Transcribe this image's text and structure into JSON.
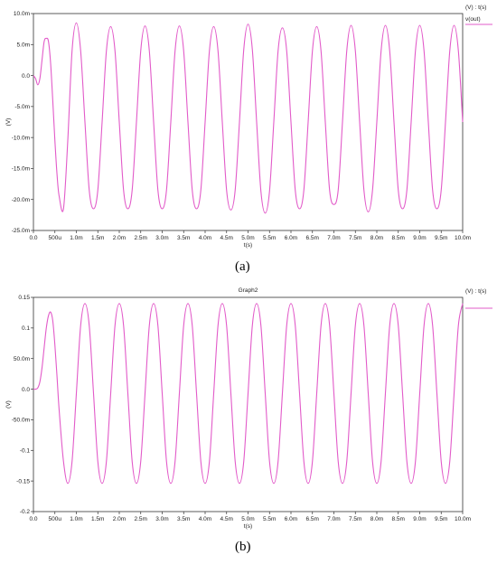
{
  "captions": [
    "(a)",
    "(b)"
  ],
  "chart_data": [
    {
      "type": "line",
      "title": "",
      "xlabel": "t(s)",
      "ylabel": "(V)",
      "legend_header": "(V) : t(s)",
      "legend_position": "top-right",
      "grid": false,
      "xlim": [
        0,
        0.01
      ],
      "ylim": [
        -0.025,
        0.01
      ],
      "x_ticks": [
        0,
        0.0005,
        0.001,
        0.0015,
        0.002,
        0.0025,
        0.003,
        0.0035,
        0.004,
        0.0045,
        0.005,
        0.0055,
        0.006,
        0.0065,
        0.007,
        0.0075,
        0.008,
        0.0085,
        0.009,
        0.0095,
        0.01
      ],
      "x_tick_labels": [
        "0.0",
        "500u",
        "1.0m",
        "1.5m",
        "2.0m",
        "2.5m",
        "3.0m",
        "3.5m",
        "4.0m",
        "4.5m",
        "5.0m",
        "5.5m",
        "6.0m",
        "6.5m",
        "7.0m",
        "7.5m",
        "8.0m",
        "8.5m",
        "9.0m",
        "9.5m",
        "10.0m"
      ],
      "y_ticks": [
        0.01,
        0.005,
        0,
        -0.005,
        -0.01,
        -0.015,
        -0.02,
        -0.025
      ],
      "y_tick_labels": [
        "10.0m",
        "5.0m",
        "0.0",
        "-5.0m",
        "-10.0m",
        "-15.0m",
        "-20.0m",
        "-25.0m"
      ],
      "series": [
        {
          "name": "v(out)",
          "color": "#e25bc9",
          "x": [
            0,
            5e-05,
            0.0001,
            0.00015,
            0.0002,
            0.00025,
            0.0003,
            0.00035,
            0.0004,
            0.00045,
            0.0005,
            0.00055,
            0.0006,
            0.0007,
            0.0008,
            0.0009,
            0.001,
            0.0011,
            0.0012,
            0.0013,
            0.0014,
            0.0015,
            0.0016,
            0.0017,
            0.0018,
            0.0019,
            0.002,
            0.0021,
            0.0022,
            0.0023,
            0.0024,
            0.0025,
            0.0026,
            0.0027,
            0.0028,
            0.0029,
            0.003,
            0.0031,
            0.0032,
            0.0033,
            0.0034,
            0.0035,
            0.0036,
            0.0037,
            0.0038,
            0.0039,
            0.004,
            0.0041,
            0.0042,
            0.0043,
            0.0044,
            0.0045,
            0.0046,
            0.0047,
            0.0048,
            0.0049,
            0.005,
            0.0051,
            0.0052,
            0.0053,
            0.0054,
            0.0055,
            0.0056,
            0.0057,
            0.0058,
            0.0059,
            0.006,
            0.0061,
            0.0062,
            0.0063,
            0.0064,
            0.0065,
            0.0066,
            0.0067,
            0.0068,
            0.0069,
            0.007,
            0.0071,
            0.0072,
            0.0073,
            0.0074,
            0.0075,
            0.0076,
            0.0077,
            0.0078,
            0.0079,
            0.008,
            0.0081,
            0.0082,
            0.0083,
            0.0084,
            0.0085,
            0.0086,
            0.0087,
            0.0088,
            0.0089,
            0.009,
            0.0091,
            0.0092,
            0.0093,
            0.0094,
            0.0095,
            0.0096,
            0.0097,
            0.0098,
            0.0099,
            0.01
          ],
          "y": [
            0,
            -0.0005,
            -0.0015,
            -0.0005,
            0.0025,
            0.0055,
            0.006,
            0.0055,
            0.002,
            -0.004,
            -0.0105,
            -0.016,
            -0.0195,
            -0.0215,
            -0.0105,
            0.004,
            0.0085,
            0.004,
            -0.0075,
            -0.0185,
            -0.0215,
            -0.0185,
            -0.0075,
            0.004,
            0.0079,
            0.004,
            -0.0075,
            -0.0185,
            -0.0215,
            -0.0185,
            -0.0075,
            0.004,
            0.008,
            0.004,
            -0.0075,
            -0.0185,
            -0.0215,
            -0.0185,
            -0.0075,
            0.004,
            0.008,
            0.004,
            -0.0075,
            -0.0185,
            -0.0215,
            -0.0185,
            -0.0075,
            0.004,
            0.0079,
            0.004,
            -0.0075,
            -0.0185,
            -0.0217,
            -0.0185,
            -0.0075,
            0.0042,
            0.0083,
            0.0042,
            -0.0075,
            -0.0187,
            -0.0222,
            -0.0187,
            -0.0075,
            0.004,
            0.0077,
            0.004,
            -0.0075,
            -0.0185,
            -0.0215,
            -0.0185,
            -0.0075,
            0.004,
            0.0079,
            0.004,
            -0.0075,
            -0.0185,
            -0.0208,
            -0.0185,
            -0.0075,
            0.004,
            0.0081,
            0.004,
            -0.0075,
            -0.0185,
            -0.022,
            -0.0185,
            -0.0075,
            0.004,
            0.0081,
            0.004,
            -0.0075,
            -0.0185,
            -0.0215,
            -0.0185,
            -0.0075,
            0.004,
            0.0081,
            0.004,
            -0.0075,
            -0.0185,
            -0.0215,
            -0.0185,
            -0.0075,
            0.004,
            0.0081,
            0.004,
            -0.0075
          ]
        }
      ]
    },
    {
      "type": "line",
      "title": "Graph2",
      "xlabel": "t(s)",
      "ylabel": "(V)",
      "legend_header": "(V) : t(s)",
      "legend_position": "top-right",
      "grid": false,
      "xlim": [
        0,
        0.01
      ],
      "ylim": [
        -0.2,
        0.15
      ],
      "x_ticks": [
        0,
        0.0005,
        0.001,
        0.0015,
        0.002,
        0.0025,
        0.003,
        0.0035,
        0.004,
        0.0045,
        0.005,
        0.0055,
        0.006,
        0.0065,
        0.007,
        0.0075,
        0.008,
        0.0085,
        0.009,
        0.0095,
        0.01
      ],
      "x_tick_labels": [
        "0.0",
        "500u",
        "1.0m",
        "1.5m",
        "2.0m",
        "2.5m",
        "3.0m",
        "3.5m",
        "4.0m",
        "4.5m",
        "5.0m",
        "5.5m",
        "6.0m",
        "6.5m",
        "7.0m",
        "7.5m",
        "8.0m",
        "8.5m",
        "9.0m",
        "9.5m",
        "10.0m"
      ],
      "y_ticks": [
        0.15,
        0.1,
        0.05,
        0,
        -0.05,
        -0.1,
        -0.15,
        -0.2
      ],
      "y_tick_labels": [
        "0.15",
        "0.1",
        "50.0m",
        "0.0",
        "-50.0m",
        "-0.1",
        "-0.15",
        "-0.2"
      ],
      "series": [
        {
          "name": "",
          "color": "#e25bc9",
          "x": [
            0,
            5e-05,
            0.0001,
            0.00015,
            0.0002,
            0.00025,
            0.0003,
            0.00035,
            0.0004,
            0.00045,
            0.0005,
            0.00055,
            0.0006,
            0.0007,
            0.0008,
            0.0009,
            0.001,
            0.0011,
            0.0012,
            0.0013,
            0.0014,
            0.0015,
            0.0016,
            0.0017,
            0.0018,
            0.0019,
            0.002,
            0.0021,
            0.0022,
            0.0023,
            0.0024,
            0.0025,
            0.0026,
            0.0027,
            0.0028,
            0.0029,
            0.003,
            0.0031,
            0.0032,
            0.0033,
            0.0034,
            0.0035,
            0.0036,
            0.0037,
            0.0038,
            0.0039,
            0.004,
            0.0041,
            0.0042,
            0.0043,
            0.0044,
            0.0045,
            0.0046,
            0.0047,
            0.0048,
            0.0049,
            0.005,
            0.0051,
            0.0052,
            0.0053,
            0.0054,
            0.0055,
            0.0056,
            0.0057,
            0.0058,
            0.0059,
            0.006,
            0.0061,
            0.0062,
            0.0063,
            0.0064,
            0.0065,
            0.0066,
            0.0067,
            0.0068,
            0.0069,
            0.007,
            0.0071,
            0.0072,
            0.0073,
            0.0074,
            0.0075,
            0.0076,
            0.0077,
            0.0078,
            0.0079,
            0.008,
            0.0081,
            0.0082,
            0.0083,
            0.0084,
            0.0085,
            0.0086,
            0.0087,
            0.0088,
            0.0089,
            0.009,
            0.0091,
            0.0092,
            0.0093,
            0.0094,
            0.0095,
            0.0096,
            0.0097,
            0.0098,
            0.0099,
            0.01
          ],
          "y": [
            0,
            0,
            0.002,
            0.012,
            0.035,
            0.068,
            0.1,
            0.12,
            0.126,
            0.112,
            0.072,
            0.02,
            -0.035,
            -0.118,
            -0.154,
            -0.118,
            -0.007,
            0.104,
            0.14,
            0.104,
            -0.007,
            -0.118,
            -0.154,
            -0.118,
            -0.007,
            0.104,
            0.14,
            0.104,
            -0.007,
            -0.118,
            -0.154,
            -0.118,
            -0.007,
            0.104,
            0.14,
            0.104,
            -0.007,
            -0.118,
            -0.154,
            -0.118,
            -0.007,
            0.104,
            0.14,
            0.104,
            -0.007,
            -0.118,
            -0.154,
            -0.118,
            -0.007,
            0.104,
            0.14,
            0.104,
            -0.007,
            -0.118,
            -0.154,
            -0.118,
            -0.007,
            0.104,
            0.14,
            0.104,
            -0.007,
            -0.118,
            -0.154,
            -0.118,
            -0.007,
            0.104,
            0.14,
            0.104,
            -0.007,
            -0.118,
            -0.154,
            -0.118,
            -0.007,
            0.104,
            0.14,
            0.104,
            -0.007,
            -0.118,
            -0.154,
            -0.118,
            -0.007,
            0.104,
            0.14,
            0.104,
            -0.007,
            -0.118,
            -0.154,
            -0.118,
            -0.007,
            0.104,
            0.14,
            0.104,
            -0.007,
            -0.118,
            -0.154,
            -0.118,
            -0.007,
            0.104,
            0.14,
            0.104,
            -0.007,
            -0.118,
            -0.154,
            -0.118,
            -0.007,
            0.104,
            0.14
          ]
        }
      ]
    }
  ]
}
